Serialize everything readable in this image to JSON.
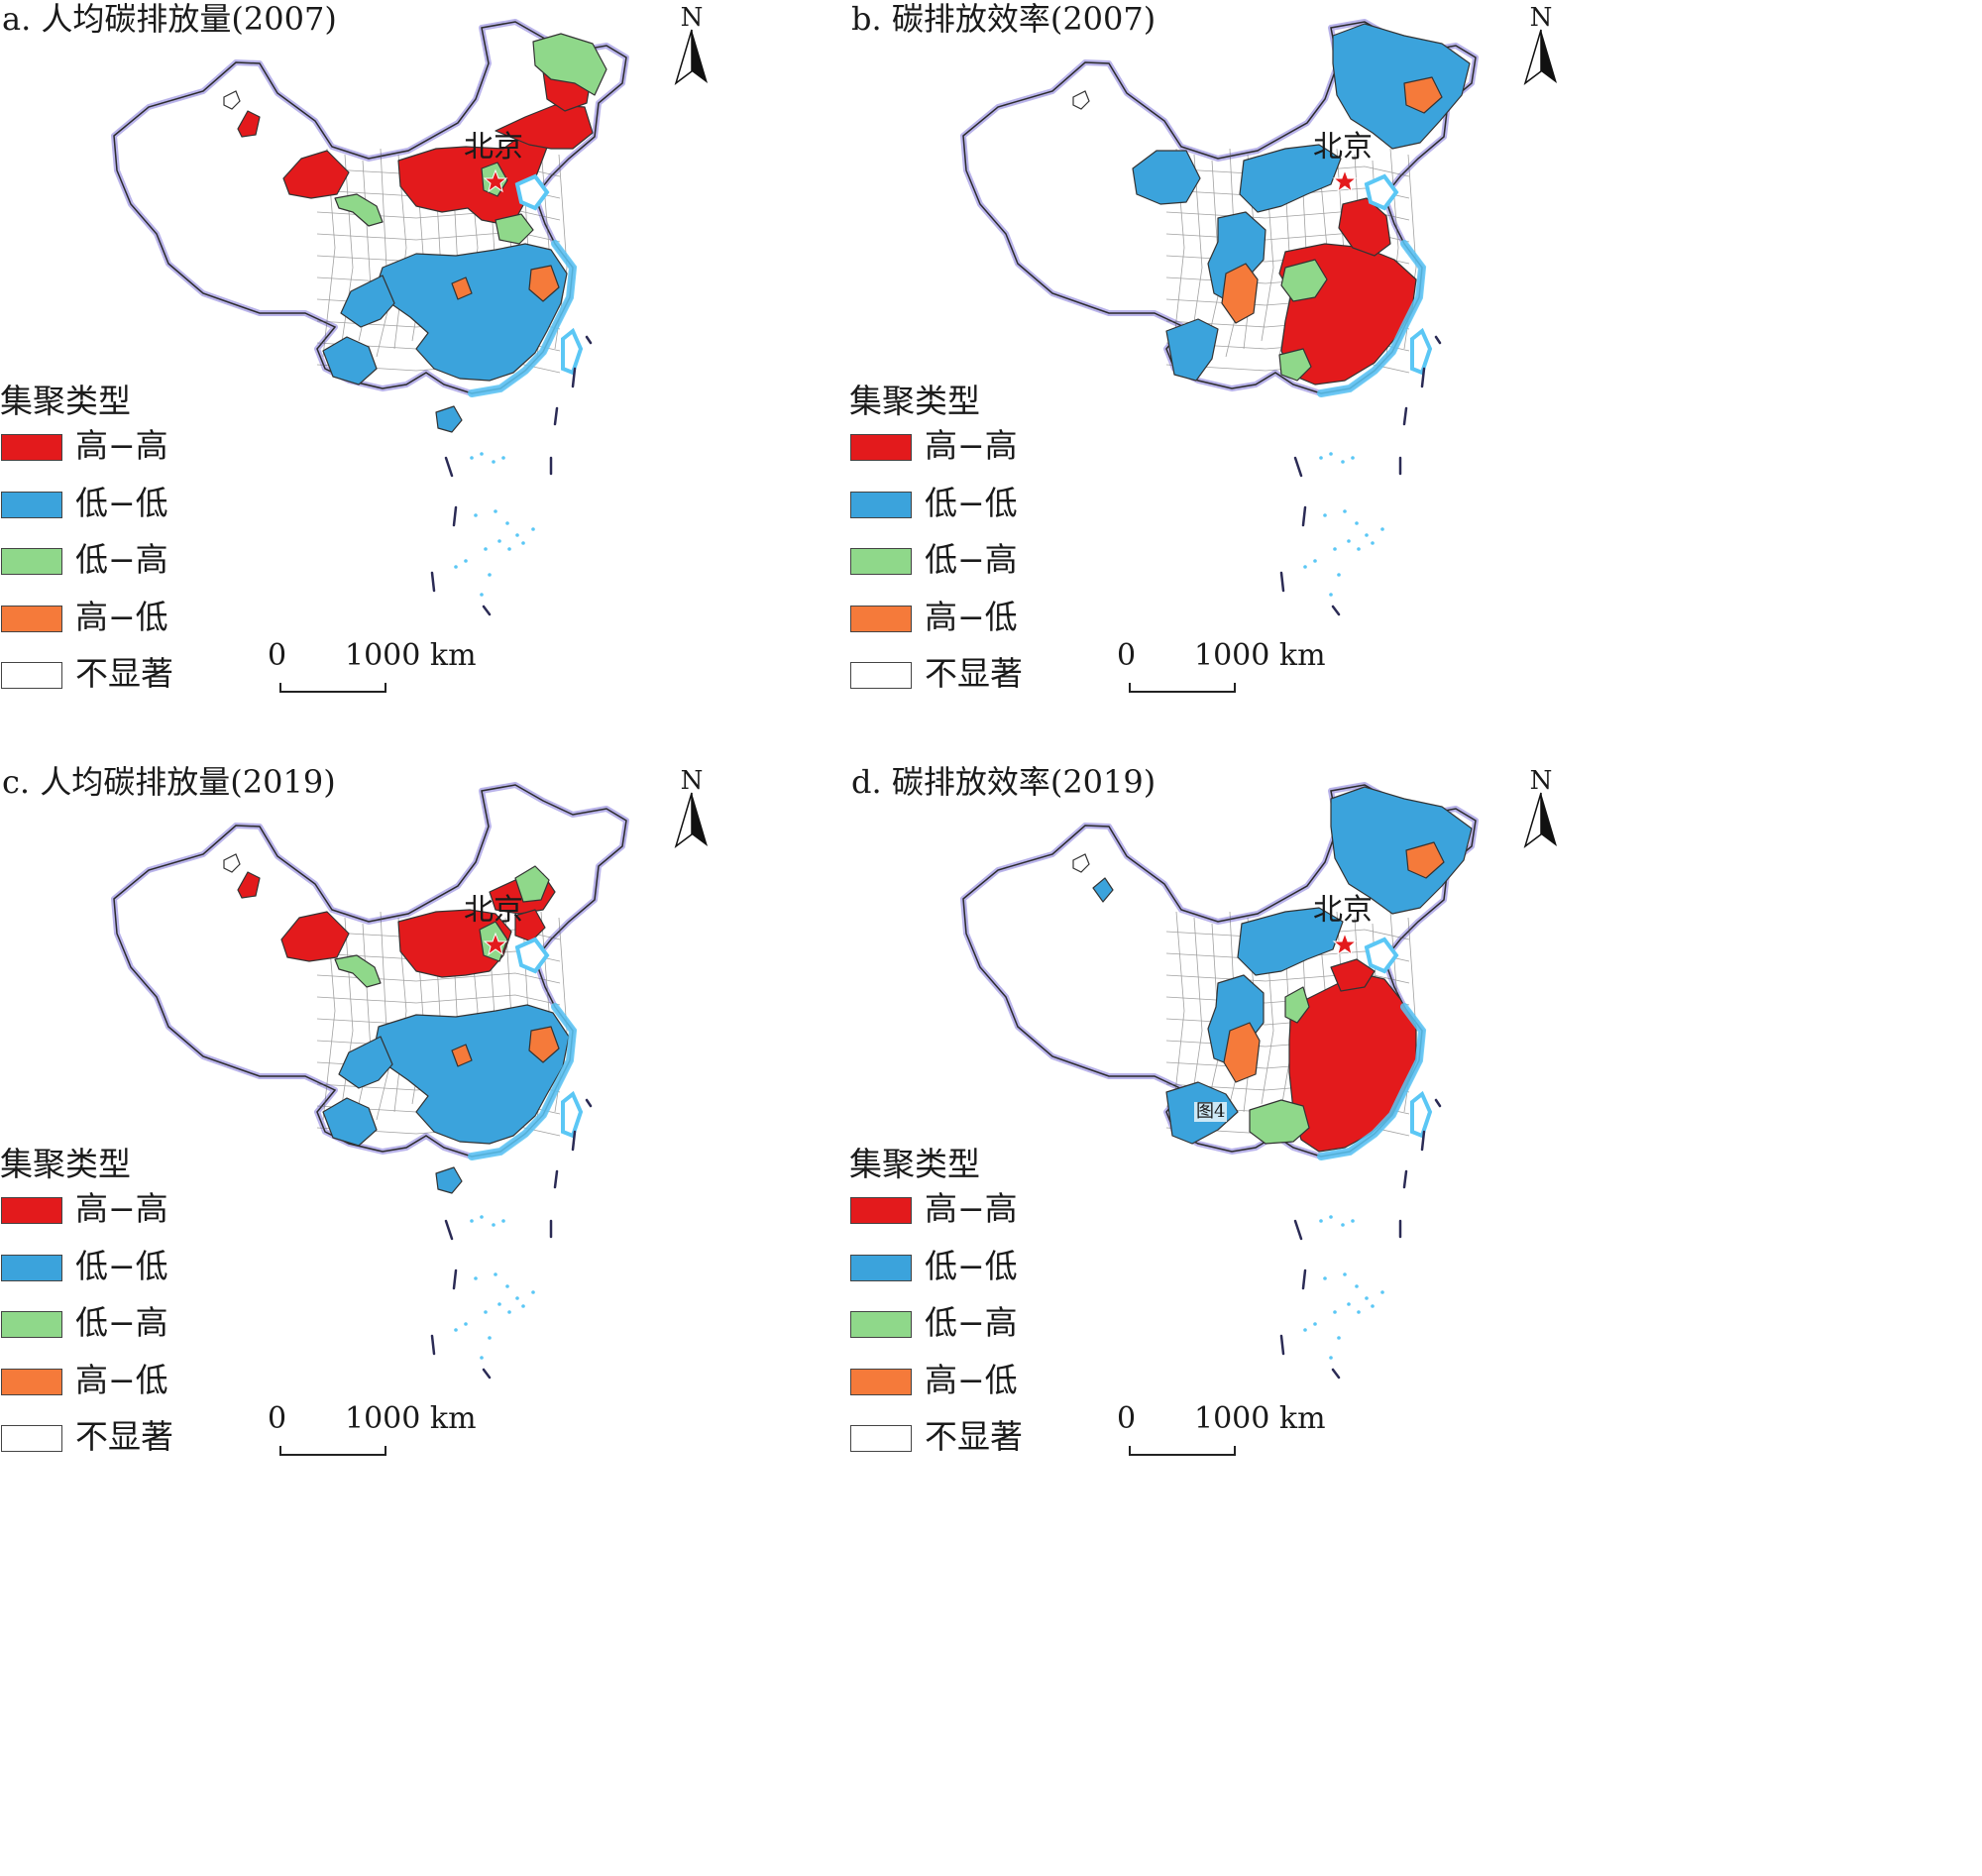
{
  "legend": {
    "title": "集聚类型",
    "items": [
      {
        "label": "高−高",
        "color": "#e31a1c",
        "name": "high-high"
      },
      {
        "label": "低−低",
        "color": "#3ba3dc",
        "name": "low-low"
      },
      {
        "label": "低−高",
        "color": "#8fd88a",
        "name": "low-high"
      },
      {
        "label": "高−低",
        "color": "#f57a3a",
        "name": "high-low"
      },
      {
        "label": "不显著",
        "color": "#ffffff",
        "name": "not-significant"
      }
    ]
  },
  "north_label": "N",
  "scale": {
    "zero": "0",
    "max": "1000 km"
  },
  "city_label": "北京",
  "panels": [
    {
      "id": "a",
      "title": "a. 人均碳排放量(2007)",
      "regions": [
        {
          "name": "north-china",
          "cluster": "high-high"
        },
        {
          "name": "inner-mongolia-central",
          "cluster": "high-high"
        },
        {
          "name": "northeast-south",
          "cluster": "high-high"
        },
        {
          "name": "xinjiang-east",
          "cluster": "high-high"
        },
        {
          "name": "xinjiang-north-spot",
          "cluster": "high-high"
        },
        {
          "name": "northeast-north",
          "cluster": "low-high"
        },
        {
          "name": "hebei-core",
          "cluster": "low-high"
        },
        {
          "name": "gansu-corridor",
          "cluster": "low-high"
        },
        {
          "name": "shandong-south",
          "cluster": "low-high"
        },
        {
          "name": "south-china",
          "cluster": "low-low"
        },
        {
          "name": "southwest",
          "cluster": "low-low"
        },
        {
          "name": "yunnan-south",
          "cluster": "low-low"
        },
        {
          "name": "hainan",
          "cluster": "low-low"
        },
        {
          "name": "zhejiang-spots",
          "cluster": "high-low"
        },
        {
          "name": "central-spots",
          "cluster": "high-low"
        }
      ],
      "annotations": []
    },
    {
      "id": "b",
      "title": "b. 碳排放效率(2007)",
      "regions": [
        {
          "name": "southeast",
          "cluster": "high-high"
        },
        {
          "name": "jiangsu-shandong",
          "cluster": "high-high"
        },
        {
          "name": "central-mix",
          "cluster": "low-high"
        },
        {
          "name": "guangxi-east",
          "cluster": "low-high"
        },
        {
          "name": "northeast",
          "cluster": "low-low"
        },
        {
          "name": "inner-mongolia",
          "cluster": "low-low"
        },
        {
          "name": "northwest",
          "cluster": "low-low"
        },
        {
          "name": "yunnan-guizhou",
          "cluster": "low-low"
        },
        {
          "name": "xinjiang-east",
          "cluster": "low-low"
        },
        {
          "name": "sichuan-spots",
          "cluster": "high-low"
        },
        {
          "name": "northeast-spots",
          "cluster": "high-low"
        }
      ],
      "annotations": []
    },
    {
      "id": "c",
      "title": "c. 人均碳排放量(2019)",
      "regions": [
        {
          "name": "north-china",
          "cluster": "high-high"
        },
        {
          "name": "inner-mongolia-central",
          "cluster": "high-high"
        },
        {
          "name": "xinjiang-east",
          "cluster": "high-high"
        },
        {
          "name": "xinjiang-north-spot",
          "cluster": "high-high"
        },
        {
          "name": "liaoning-west",
          "cluster": "high-high"
        },
        {
          "name": "hebei-core",
          "cluster": "low-high"
        },
        {
          "name": "gansu-corridor",
          "cluster": "low-high"
        },
        {
          "name": "northeast-west-strip",
          "cluster": "low-high"
        },
        {
          "name": "south-china",
          "cluster": "low-low"
        },
        {
          "name": "southwest",
          "cluster": "low-low"
        },
        {
          "name": "yunnan-south",
          "cluster": "low-low"
        },
        {
          "name": "hainan",
          "cluster": "low-low"
        },
        {
          "name": "zhejiang-spots",
          "cluster": "high-low"
        },
        {
          "name": "central-spots",
          "cluster": "high-low"
        }
      ],
      "annotations": []
    },
    {
      "id": "d",
      "title": "d. 碳排放效率(2019)",
      "regions": [
        {
          "name": "southeast",
          "cluster": "high-high"
        },
        {
          "name": "east-china",
          "cluster": "high-high"
        },
        {
          "name": "guangxi",
          "cluster": "low-high"
        },
        {
          "name": "central-west-strip",
          "cluster": "low-high"
        },
        {
          "name": "northeast",
          "cluster": "low-low"
        },
        {
          "name": "inner-mongolia",
          "cluster": "low-low"
        },
        {
          "name": "northwest",
          "cluster": "low-low"
        },
        {
          "name": "xinjiang-spot",
          "cluster": "low-low"
        },
        {
          "name": "yunnan",
          "cluster": "low-low"
        },
        {
          "name": "northeast-spots",
          "cluster": "high-low"
        },
        {
          "name": "sichuan-spots",
          "cluster": "high-low"
        }
      ],
      "annotations": [
        "图4"
      ]
    }
  ]
}
